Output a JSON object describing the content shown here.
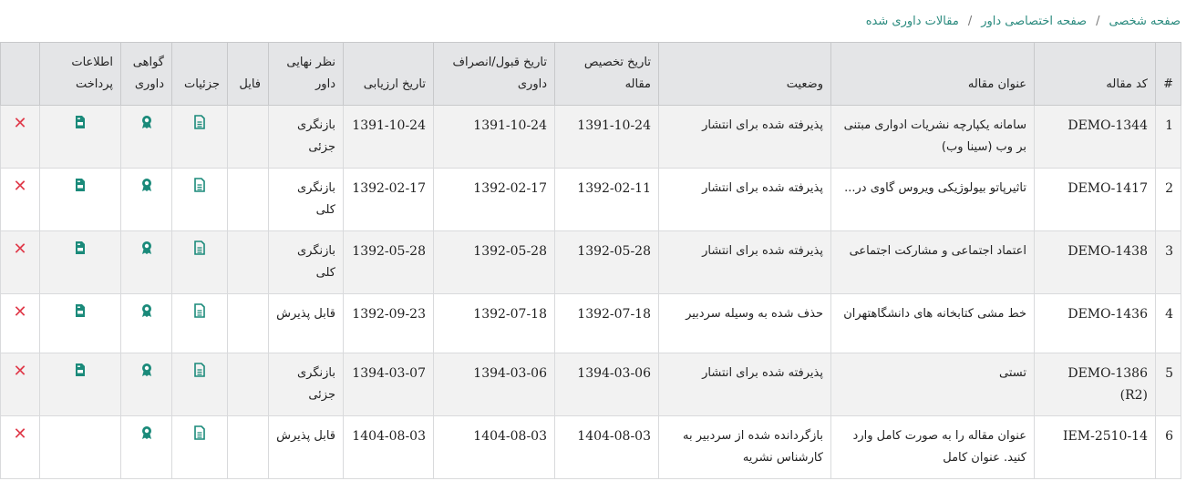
{
  "breadcrumb": [
    "صفحه شخصی",
    "صفحه اختصاصی داور",
    "مقالات داوری شده"
  ],
  "breadcrumb_sep": "/",
  "colors": {
    "accent": "#1a8a7a",
    "delete": "#e03a4a",
    "header_bg": "#e4e5e7"
  },
  "columns": [
    "#",
    "کد مقاله",
    "عنوان مقاله",
    "وضعیت",
    "تاریخ تخصیص مقاله",
    "تاریخ قبول/انصراف داوری",
    "تاریخ ارزیابی",
    "نظر نهایی داور",
    "فایل",
    "جزئیات",
    "گواهی داوری",
    "اطلاعات پرداخت",
    ""
  ],
  "icons": {
    "details": "document-icon",
    "certificate": "award-icon",
    "payment": "file-invoice-icon",
    "delete": "close-icon"
  },
  "rows": [
    {
      "n": "1",
      "code": "1344-DEMO",
      "title": "سامانه یکپارچه نشریات ادواری مبتنی بر وب (سینا وب)",
      "status": "پذیرفته شده برای انتشار",
      "assign": "1391-10-24",
      "accept": "1391-10-24",
      "eval": "1391-10-24",
      "opinion": "بازنگری جزئی",
      "payment": true
    },
    {
      "n": "2",
      "code": "1417-DEMO",
      "title": "تاثیرپاتو بیولوژیکی ویروس گاوی در...",
      "status": "پذیرفته شده برای انتشار",
      "assign": "1392-02-11",
      "accept": "1392-02-17",
      "eval": "1392-02-17",
      "opinion": "بازنگری کلی",
      "payment": true
    },
    {
      "n": "3",
      "code": "1438-DEMO",
      "title": "اعتماد اجتماعی و مشارکت اجتماعی",
      "status": "پذیرفته شده برای انتشار",
      "assign": "1392-05-28",
      "accept": "1392-05-28",
      "eval": "1392-05-28",
      "opinion": "بازنگری کلی",
      "payment": true
    },
    {
      "n": "4",
      "code": "1436-DEMO",
      "title": "خط مشی کتابخانه های دانشگاهتهران",
      "status": "حذف شده به وسیله سردبیر",
      "assign": "1392-07-18",
      "accept": "1392-07-18",
      "eval": "1392-09-23",
      "opinion": "قابل پذیرش",
      "payment": true
    },
    {
      "n": "5",
      "code": "1386-DEMO (R2)",
      "title": "تستی",
      "status": "پذیرفته شده برای انتشار",
      "assign": "1394-03-06",
      "accept": "1394-03-06",
      "eval": "1394-03-07",
      "opinion": "بازنگری جزئی",
      "payment": true
    },
    {
      "n": "6",
      "code": "IEM-2510-14",
      "title": "عنوان مقاله را به صورت کامل وارد کنید. عنوان کامل",
      "status": "بازگردانده شده از سردبیر به کارشناس نشریه",
      "assign": "1404-08-03",
      "accept": "1404-08-03",
      "eval": "1404-08-03",
      "opinion": "قابل پذیرش",
      "payment": false
    }
  ]
}
